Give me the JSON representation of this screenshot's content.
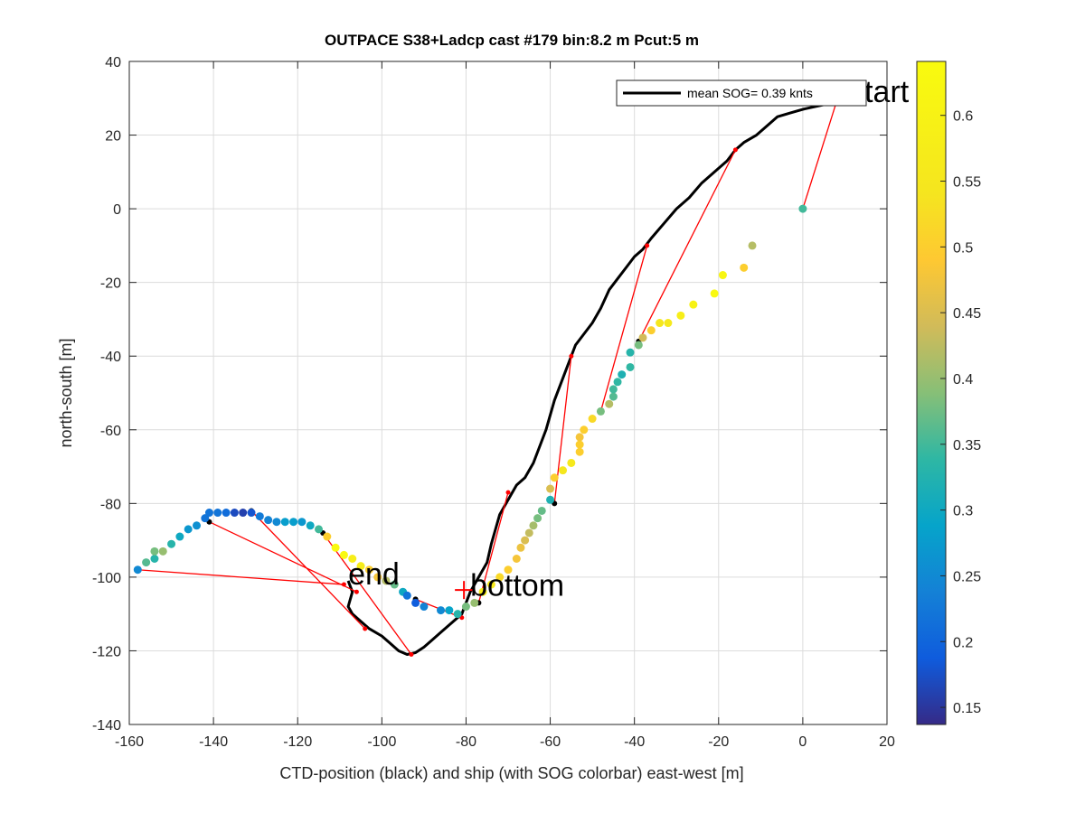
{
  "chart_data": {
    "type": "scatter",
    "title": "OUTPACE S38+Ladcp cast #179 bin:8.2 m  Pcut:5 m",
    "xlabel": "CTD-position (black) and ship (with SOG colorbar) east-west [m]",
    "ylabel": "north-south [m]",
    "xlim": [
      -160,
      20
    ],
    "ylim": [
      -140,
      40
    ],
    "xticks": [
      -160,
      -140,
      -120,
      -100,
      -80,
      -60,
      -40,
      -20,
      0,
      20
    ],
    "yticks": [
      -140,
      -120,
      -100,
      -80,
      -60,
      -40,
      -20,
      0,
      20,
      40
    ],
    "grid": true,
    "legend": {
      "placement": "top-right",
      "entries": [
        "mean SOG=  0.39 knts"
      ]
    },
    "annotations": [
      {
        "text": "start",
        "x": 11,
        "y": 29
      },
      {
        "text": "end",
        "x": -108,
        "y": -102
      },
      {
        "text": "bottom",
        "x": -79,
        "y": -105
      }
    ],
    "markers": [
      {
        "label": "bottom",
        "x": -80.5,
        "y": -103.5,
        "color": "#ff0000"
      }
    ],
    "colorbar": {
      "label_ticks": [
        0.15,
        0.2,
        0.25,
        0.3,
        0.35,
        0.4,
        0.45,
        0.5,
        0.55,
        0.6
      ],
      "range": [
        0.137,
        0.641
      ],
      "colormap": "parula"
    },
    "series": [
      {
        "name": "mean SOG=  0.39 knts",
        "kind": "ctd-track",
        "color": "#000000",
        "points": [
          [
            8,
            29
          ],
          [
            0,
            27
          ],
          [
            -3,
            26
          ],
          [
            -6,
            25
          ],
          [
            -9,
            22
          ],
          [
            -11,
            20
          ],
          [
            -14,
            18
          ],
          [
            -16,
            16
          ],
          [
            -18,
            13
          ],
          [
            -21,
            10
          ],
          [
            -24,
            7
          ],
          [
            -27,
            3
          ],
          [
            -30,
            0
          ],
          [
            -33,
            -4
          ],
          [
            -36,
            -8
          ],
          [
            -38,
            -11
          ],
          [
            -40,
            -13
          ],
          [
            -42,
            -16
          ],
          [
            -44,
            -19
          ],
          [
            -46,
            -22
          ],
          [
            -48,
            -27
          ],
          [
            -50,
            -31
          ],
          [
            -52,
            -34
          ],
          [
            -54,
            -37
          ],
          [
            -55,
            -40
          ],
          [
            -56,
            -43
          ],
          [
            -57,
            -46
          ],
          [
            -58,
            -49
          ],
          [
            -59,
            -52
          ],
          [
            -60,
            -56
          ],
          [
            -61,
            -60
          ],
          [
            -62,
            -63
          ],
          [
            -63,
            -66
          ],
          [
            -64,
            -69
          ],
          [
            -66,
            -73
          ],
          [
            -68,
            -75
          ],
          [
            -70,
            -79
          ],
          [
            -72,
            -83
          ],
          [
            -73,
            -87
          ],
          [
            -74,
            -91
          ],
          [
            -75,
            -96
          ],
          [
            -77,
            -100
          ],
          [
            -79,
            -104
          ],
          [
            -80,
            -107
          ],
          [
            -81,
            -110
          ],
          [
            -84,
            -113
          ],
          [
            -86,
            -115
          ],
          [
            -88,
            -117
          ],
          [
            -90,
            -119
          ],
          [
            -92,
            -120.5
          ],
          [
            -94,
            -121
          ],
          [
            -96,
            -120
          ],
          [
            -98,
            -118
          ],
          [
            -100,
            -116
          ],
          [
            -103,
            -114
          ],
          [
            -105,
            -112
          ],
          [
            -107,
            -110
          ],
          [
            -108,
            -108
          ],
          [
            -107,
            -104
          ],
          [
            -108,
            -101
          ]
        ]
      },
      {
        "name": "",
        "kind": "ship-sog",
        "points": [
          [
            -158,
            -98,
            0.25
          ],
          [
            -156,
            -96,
            0.36
          ],
          [
            -154,
            -95,
            0.33
          ],
          [
            -154,
            -93,
            0.38
          ],
          [
            -152,
            -93,
            0.4
          ],
          [
            -150,
            -91,
            0.33
          ],
          [
            -148,
            -89,
            0.3
          ],
          [
            -146,
            -87,
            0.27
          ],
          [
            -144,
            -86,
            0.26
          ],
          [
            -142,
            -84,
            0.22
          ],
          [
            -141,
            -82.5,
            0.22
          ],
          [
            -139,
            -82.5,
            0.22
          ],
          [
            -137,
            -82.5,
            0.21
          ],
          [
            -135,
            -82.5,
            0.17
          ],
          [
            -133,
            -82.5,
            0.16
          ],
          [
            -131,
            -82.5,
            0.18
          ],
          [
            -129,
            -83.5,
            0.23
          ],
          [
            -127,
            -84.5,
            0.24
          ],
          [
            -125,
            -85,
            0.25
          ],
          [
            -123,
            -85,
            0.28
          ],
          [
            -121,
            -85,
            0.28
          ],
          [
            -119,
            -85,
            0.27
          ],
          [
            -117,
            -86,
            0.3
          ],
          [
            -115,
            -87,
            0.35
          ],
          [
            -113,
            -89,
            0.5
          ],
          [
            -111,
            -92,
            0.63
          ],
          [
            -109,
            -94,
            0.63
          ],
          [
            -107,
            -95,
            0.58
          ],
          [
            -105,
            -97,
            0.57
          ],
          [
            -103,
            -98,
            0.5
          ],
          [
            -101,
            -100,
            0.48
          ],
          [
            -99,
            -101,
            0.42
          ],
          [
            -97,
            -102,
            0.37
          ],
          [
            -95,
            -104,
            0.3
          ],
          [
            -94,
            -105,
            0.22
          ],
          [
            -92,
            -107,
            0.19
          ],
          [
            -90,
            -108,
            0.24
          ],
          [
            -86,
            -109,
            0.25
          ],
          [
            -84,
            -109,
            0.29
          ],
          [
            -82,
            -110,
            0.33
          ],
          [
            -80,
            -108,
            0.38
          ],
          [
            -78,
            -107,
            0.4
          ],
          [
            -76,
            -104,
            0.57
          ],
          [
            -74,
            -102,
            0.56
          ],
          [
            -72,
            -100,
            0.52
          ],
          [
            -70,
            -98,
            0.5
          ],
          [
            -68,
            -95,
            0.48
          ],
          [
            -67,
            -92,
            0.47
          ],
          [
            -66,
            -90,
            0.45
          ],
          [
            -65,
            -88,
            0.43
          ],
          [
            -64,
            -86,
            0.41
          ],
          [
            -63,
            -84,
            0.38
          ],
          [
            -62,
            -82,
            0.37
          ],
          [
            -60,
            -79,
            0.32
          ],
          [
            -60,
            -76,
            0.45
          ],
          [
            -59,
            -73,
            0.5
          ],
          [
            -57,
            -71,
            0.55
          ],
          [
            -55,
            -69,
            0.56
          ],
          [
            -53,
            -66,
            0.5
          ],
          [
            -53,
            -64,
            0.5
          ],
          [
            -53,
            -62,
            0.48
          ],
          [
            -52,
            -60,
            0.5
          ],
          [
            -50,
            -57,
            0.52
          ],
          [
            -48,
            -55,
            0.38
          ],
          [
            -46,
            -53,
            0.42
          ],
          [
            -45,
            -51,
            0.36
          ],
          [
            -45,
            -49,
            0.35
          ],
          [
            -44,
            -47,
            0.34
          ],
          [
            -43,
            -45,
            0.32
          ],
          [
            -41,
            -43,
            0.34
          ],
          [
            -41,
            -39,
            0.33
          ],
          [
            -39,
            -37,
            0.38
          ],
          [
            -38,
            -35,
            0.44
          ],
          [
            -36,
            -33,
            0.5
          ],
          [
            -34,
            -31,
            0.55
          ],
          [
            -32,
            -31,
            0.56
          ],
          [
            -29,
            -29,
            0.58
          ],
          [
            -26,
            -26,
            0.6
          ],
          [
            -21,
            -23,
            0.63
          ],
          [
            -19,
            -18,
            0.62
          ],
          [
            -14,
            -16,
            0.5
          ],
          [
            -12,
            -10,
            0.42
          ],
          [
            0,
            0,
            0.35
          ]
        ]
      },
      {
        "name": "",
        "kind": "ctd-ship-links",
        "color": "#ff0000",
        "segments": [
          [
            [
              8,
              29
            ],
            [
              0,
              0
            ]
          ],
          [
            [
              -16,
              16
            ],
            [
              -39,
              -36
            ]
          ],
          [
            [
              -37,
              -10
            ],
            [
              -48,
              -55
            ]
          ],
          [
            [
              -55,
              -40
            ],
            [
              -59,
              -80
            ]
          ],
          [
            [
              -70,
              -77
            ],
            [
              -77,
              -107
            ]
          ],
          [
            [
              -81,
              -111
            ],
            [
              -92,
              -106
            ]
          ],
          [
            [
              -93,
              -121
            ],
            [
              -114,
              -88
            ]
          ],
          [
            [
              -104,
              -114
            ],
            [
              -131,
              -82
            ]
          ],
          [
            [
              -106,
              -104
            ],
            [
              -141,
              -85
            ]
          ],
          [
            [
              -109,
              -102
            ],
            [
              -158,
              -98
            ]
          ]
        ]
      }
    ]
  }
}
